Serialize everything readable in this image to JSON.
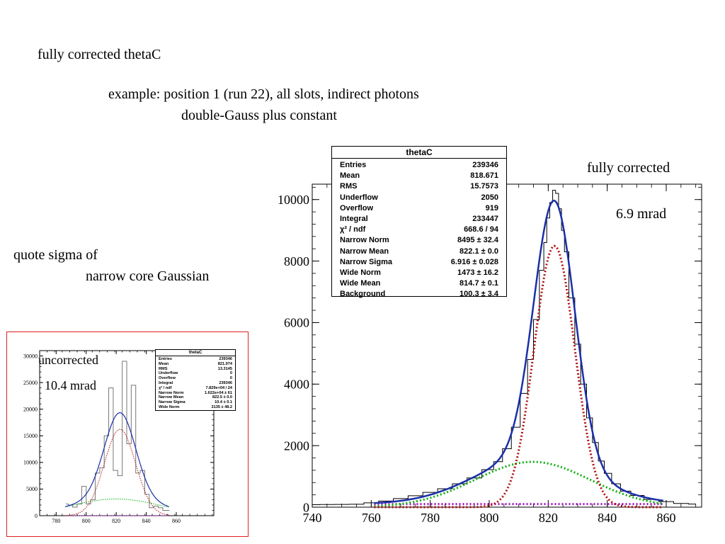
{
  "slide": {
    "title": "fully corrected thetaC",
    "subtitle_line1": "example: position 1 (run 22), all slots, indirect photons",
    "subtitle_line2": "double-Gauss plus constant",
    "note_line1": "quote sigma of",
    "note_line2": "narrow core Gaussian",
    "main_label": "fully corrected",
    "main_sigma": "6.9 mrad",
    "inset_label": "uncorrected",
    "inset_sigma": "10.4 mrad",
    "inset_border_color": "#e02020"
  },
  "main_stats": {
    "title": "thetaC",
    "rows": [
      {
        "label": "Entries",
        "value": "239346"
      },
      {
        "label": "Mean",
        "value": "818.671"
      },
      {
        "label": "RMS",
        "value": "15.7573"
      },
      {
        "label": "Underflow",
        "value": "2050"
      },
      {
        "label": "Overflow",
        "value": "919"
      },
      {
        "label": "Integral",
        "value": "233447"
      },
      {
        "label": "χ² / ndf",
        "value": "668.6 / 94"
      },
      {
        "label": "Narrow Norm",
        "value": "8495 ± 32.4"
      },
      {
        "label": "Narrow Mean",
        "value": "822.1 ± 0.0"
      },
      {
        "label": "Narrow Sigma",
        "value": "6.916 ± 0.028"
      },
      {
        "label": "Wide Norm",
        "value": "1473 ± 16.2"
      },
      {
        "label": "Wide Mean",
        "value": "814.7 ± 0.1"
      },
      {
        "label": "Background",
        "value": "100.3 ± 3.4"
      }
    ]
  },
  "inset_stats": {
    "title": "thetaC",
    "rows": [
      {
        "label": "Entries",
        "value": "239346"
      },
      {
        "label": "Mean",
        "value": "821.974"
      },
      {
        "label": "RMS",
        "value": "13.3145"
      },
      {
        "label": "Underflow",
        "value": "0"
      },
      {
        "label": "Overflow",
        "value": "0"
      },
      {
        "label": "Integral",
        "value": "239346"
      },
      {
        "label": "χ² / ndf",
        "value": "7.829e+04 / 24"
      },
      {
        "label": "Narrow Norm",
        "value": "1.622e+04 ± 61"
      },
      {
        "label": "Narrow Mean",
        "value": "822.5 ± 0.0"
      },
      {
        "label": "Narrow Sigma",
        "value": "10.4 ± 0.1"
      },
      {
        "label": "Wide Norm",
        "value": "3135 ± 48.2"
      }
    ]
  },
  "chart_data": [
    {
      "type": "histogram",
      "title": "",
      "xlabel": "",
      "ylabel": "",
      "xlim": [
        740,
        872
      ],
      "ylim": [
        0,
        10500
      ],
      "x_ticks": [
        740,
        760,
        780,
        800,
        820,
        840,
        860
      ],
      "y_ticks": [
        0,
        2000,
        4000,
        6000,
        8000,
        10000
      ],
      "colors": {
        "histogram": "#000000",
        "total_fit": "#1a2fa8",
        "narrow": "#b01010",
        "wide": "#10b010",
        "background": "#a010c0"
      },
      "histogram": {
        "bin_width": 1,
        "x": [
          740,
          745,
          750,
          755,
          760,
          765,
          770,
          775,
          780,
          785,
          790,
          795,
          800,
          803,
          806,
          809,
          812,
          814,
          816,
          818,
          819,
          820,
          821,
          822,
          823,
          824,
          825,
          826,
          828,
          830,
          832,
          834,
          836,
          838,
          840,
          843,
          846,
          850,
          855,
          860,
          865,
          870
        ],
        "y": [
          80,
          85,
          90,
          95,
          140,
          200,
          280,
          370,
          480,
          600,
          760,
          950,
          1220,
          1480,
          1900,
          2600,
          3700,
          4800,
          6100,
          7700,
          8600,
          9400,
          9900,
          10300,
          10200,
          9700,
          9000,
          8300,
          6800,
          5300,
          4000,
          2900,
          2100,
          1500,
          1100,
          760,
          520,
          380,
          250,
          180,
          120,
          100
        ]
      },
      "fit": {
        "model": "double-Gauss plus constant",
        "range": [
          761,
          859
        ],
        "narrow": {
          "norm": 8495,
          "mean": 822.1,
          "sigma": 6.916
        },
        "wide": {
          "norm": 1473,
          "mean": 814.7,
          "sigma": 19.5
        },
        "background": 100.3
      }
    },
    {
      "type": "histogram",
      "title": "",
      "xlabel": "",
      "ylabel": "",
      "xlim": [
        769,
        885
      ],
      "ylim": [
        0,
        31000
      ],
      "x_ticks": [
        780,
        800,
        820,
        840,
        860
      ],
      "y_ticks": [
        0,
        5000,
        10000,
        15000,
        20000,
        25000,
        30000
      ],
      "colors": {
        "histogram": "#777777",
        "total_fit": "#1a2fa8",
        "narrow": "#b01010",
        "wide": "#10b010",
        "background": "#a010c0"
      },
      "histogram": {
        "x": [
          786.5,
          789.5,
          792.5,
          795.5,
          798.5,
          801.5,
          804.5,
          807.5,
          810.5,
          813.5,
          816.5,
          819.5,
          822.5,
          825.5,
          828.5,
          831.5,
          834.5,
          837.5,
          840.5,
          843.5,
          846.5,
          849.5,
          852.5,
          855.5
        ],
        "y": [
          2200,
          2000,
          1600,
          2200,
          5500,
          2200,
          3000,
          8000,
          9000,
          15000,
          24000,
          8500,
          7500,
          29000,
          13500,
          24500,
          8000,
          8500,
          4000,
          1500,
          1800,
          1500,
          1000,
          1000
        ]
      },
      "fit": {
        "model": "double-Gauss plus constant",
        "range": [
          786,
          855
        ],
        "narrow": {
          "norm": 16220,
          "mean": 822.5,
          "sigma": 10.4
        },
        "wide": {
          "norm": 3135,
          "mean": 820,
          "sigma": 30
        },
        "background": 0
      }
    }
  ]
}
